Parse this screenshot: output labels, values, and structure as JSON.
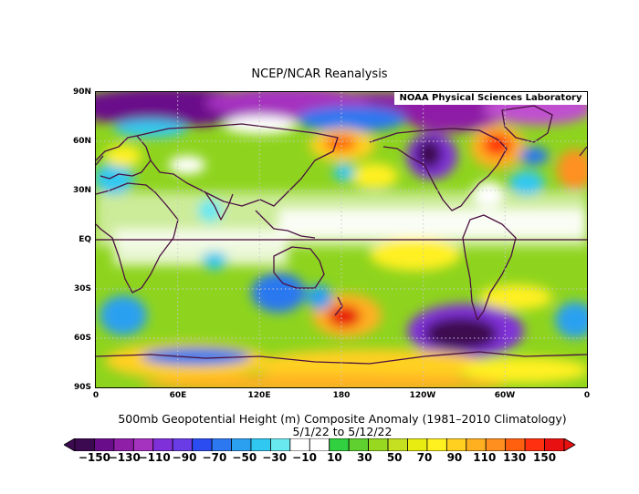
{
  "title": "NCEP/NCAR Reanalysis",
  "credit": "NOAA Physical Sciences Laboratory",
  "caption_line1": "500mb Geopotential Height (m) Composite Anomaly (1981–2010 Climatology)",
  "caption_line2": "5/1/22  to 5/12/22",
  "lat_labels": [
    "90N",
    "60N",
    "30N",
    "EQ",
    "30S",
    "60S",
    "90S"
  ],
  "lon_labels": [
    "0",
    "60E",
    "120E",
    "180",
    "120W",
    "60W",
    "0"
  ],
  "colorbar": {
    "labels": [
      "−150",
      "−130",
      "−110",
      "−90",
      "−70",
      "−50",
      "−30",
      "−10",
      "10",
      "30",
      "50",
      "70",
      "90",
      "110",
      "130",
      "150"
    ],
    "colors": [
      "#3c0a50",
      "#6a0d8a",
      "#8e1fa6",
      "#a633c0",
      "#8030d8",
      "#6a3ce6",
      "#2a4cf0",
      "#2c78f0",
      "#2ba0f0",
      "#30c8f0",
      "#6ae8f0",
      "#ffffff",
      "#ffffff",
      "#30d040",
      "#60d030",
      "#98d820",
      "#c4e020",
      "#e8ec10",
      "#fff020",
      "#ffd020",
      "#ffb020",
      "#ff9020",
      "#ff6010",
      "#ff3010",
      "#e81010"
    ]
  },
  "colors": {
    "continent_outline": "#4a1040",
    "graticule": "#c8c8c8",
    "equator": "#400030"
  }
}
